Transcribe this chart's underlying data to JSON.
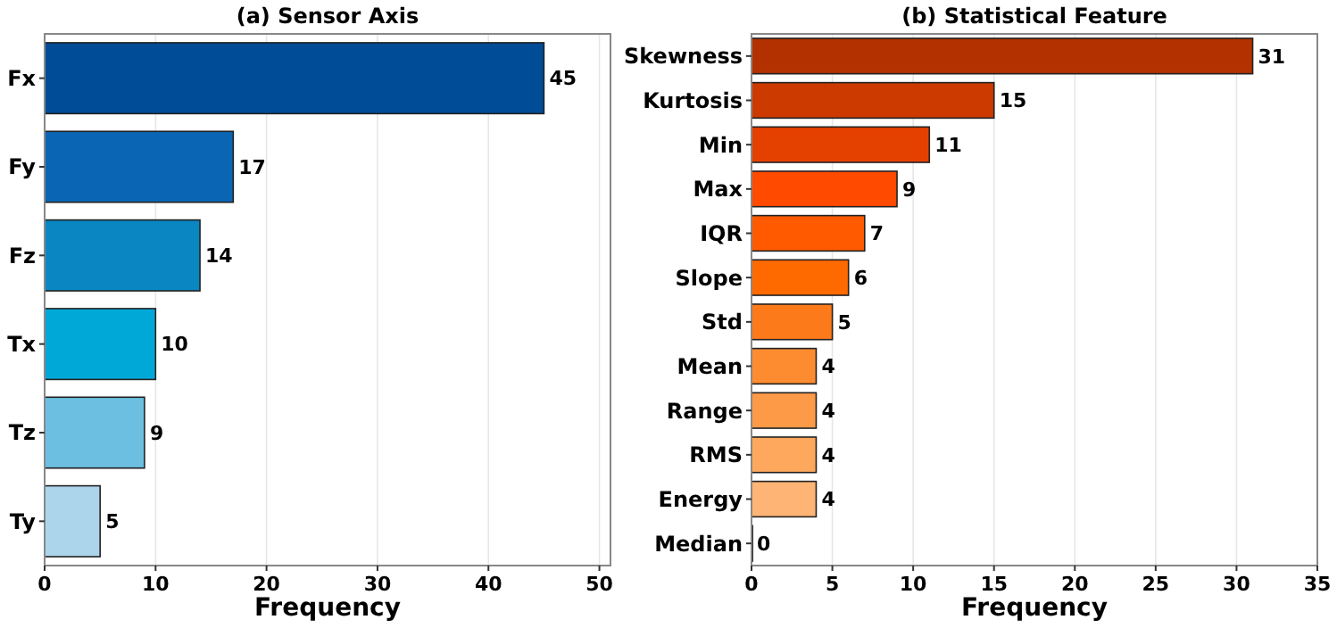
{
  "chart_data": [
    {
      "type": "bar",
      "orientation": "horizontal",
      "title": "(a) Sensor Axis",
      "xlabel": "Frequency",
      "categories": [
        "Fx",
        "Fy",
        "Fz",
        "Tx",
        "Tz",
        "Ty"
      ],
      "values": [
        45,
        17,
        14,
        10,
        9,
        5
      ],
      "colors": [
        "#004c97",
        "#0a66b4",
        "#0a87c2",
        "#00a8d8",
        "#6cbfe0",
        "#acd5ec"
      ],
      "xlim": [
        0,
        51
      ],
      "xticks": [
        0,
        10,
        20,
        30,
        40,
        50
      ],
      "grid": "x",
      "data_labels": true
    },
    {
      "type": "bar",
      "orientation": "horizontal",
      "title": "(b) Statistical Feature",
      "xlabel": "Frequency",
      "categories": [
        "Skewness",
        "Kurtosis",
        "Min",
        "Max",
        "IQR",
        "Slope",
        "Std",
        "Mean",
        "Range",
        "RMS",
        "Energy",
        "Median"
      ],
      "values": [
        31,
        15,
        11,
        9,
        7,
        6,
        5,
        4,
        4,
        4,
        4,
        0
      ],
      "colors": [
        "#b33100",
        "#cc3a00",
        "#e44000",
        "#ff4a00",
        "#ff5a00",
        "#ff6a00",
        "#fd7a1a",
        "#fd8c30",
        "#fd9a48",
        "#fda85c",
        "#fdb474",
        "#fdd0a2"
      ],
      "xlim": [
        0,
        35
      ],
      "xticks": [
        0,
        5,
        10,
        15,
        20,
        25,
        30,
        35
      ],
      "grid": "x",
      "data_labels": true
    }
  ]
}
